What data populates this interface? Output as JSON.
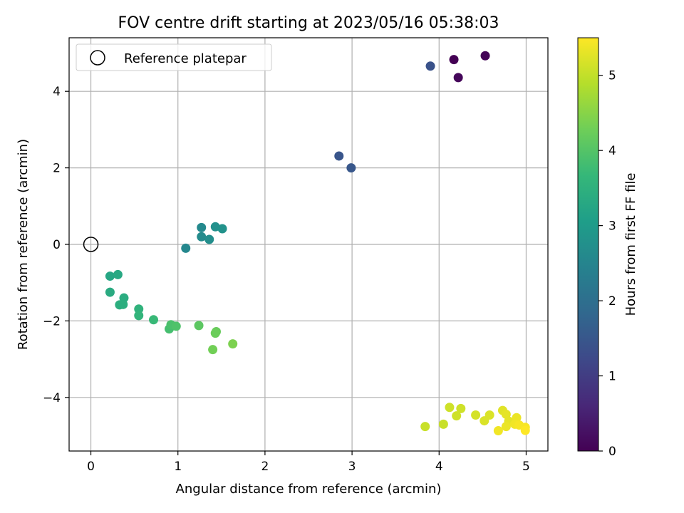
{
  "chart_data": {
    "type": "scatter",
    "title": "FOV centre drift starting at 2023/05/16 05:38:03",
    "xlabel": "Angular distance from reference (arcmin)",
    "ylabel": "Rotation from reference (arcmin)",
    "xlim": [
      -0.25,
      5.25
    ],
    "ylim": [
      -5.4,
      5.4
    ],
    "xticks": [
      0,
      1,
      2,
      3,
      4,
      5
    ],
    "xtick_labels": [
      "0",
      "1",
      "2",
      "3",
      "4",
      "5"
    ],
    "yticks": [
      -4,
      -2,
      0,
      2,
      4
    ],
    "ytick_labels": [
      "−4",
      "−2",
      "0",
      "2",
      "4"
    ],
    "grid": true,
    "legend": {
      "label": "Reference platepar",
      "placement": "top-left"
    },
    "reference_point": {
      "x": 0,
      "y": 0
    },
    "colorbar": {
      "label": "Hours from first FF file",
      "colormap": "viridis",
      "range": [
        0,
        5.5
      ],
      "ticks": [
        0,
        1,
        2,
        3,
        4,
        5
      ],
      "tick_labels": [
        "0",
        "1",
        "2",
        "3",
        "4",
        "5"
      ]
    },
    "colormap_stops": [
      "#440154",
      "#482878",
      "#3e4989",
      "#31688e",
      "#26828e",
      "#1f9e89",
      "#35b779",
      "#6ece58",
      "#b5de2b",
      "#fde725"
    ],
    "points": [
      {
        "x": 4.17,
        "y": 4.83,
        "t": 0.0
      },
      {
        "x": 4.53,
        "y": 4.93,
        "t": 0.05
      },
      {
        "x": 4.22,
        "y": 4.36,
        "t": 0.1
      },
      {
        "x": 3.9,
        "y": 4.66,
        "t": 1.4
      },
      {
        "x": 2.85,
        "y": 2.31,
        "t": 1.45
      },
      {
        "x": 2.99,
        "y": 2.0,
        "t": 1.5
      },
      {
        "x": 1.09,
        "y": -0.1,
        "t": 2.55
      },
      {
        "x": 1.27,
        "y": 0.44,
        "t": 2.6
      },
      {
        "x": 1.27,
        "y": 0.2,
        "t": 2.65
      },
      {
        "x": 1.36,
        "y": 0.13,
        "t": 2.7
      },
      {
        "x": 1.43,
        "y": 0.46,
        "t": 2.75
      },
      {
        "x": 1.51,
        "y": 0.41,
        "t": 2.8
      },
      {
        "x": 0.22,
        "y": -0.83,
        "t": 3.25
      },
      {
        "x": 0.31,
        "y": -0.79,
        "t": 3.3
      },
      {
        "x": 0.22,
        "y": -1.25,
        "t": 3.35
      },
      {
        "x": 0.38,
        "y": -1.4,
        "t": 3.4
      },
      {
        "x": 0.33,
        "y": -1.58,
        "t": 3.45
      },
      {
        "x": 0.37,
        "y": -1.57,
        "t": 3.45
      },
      {
        "x": 0.55,
        "y": -1.69,
        "t": 3.55
      },
      {
        "x": 0.55,
        "y": -1.86,
        "t": 3.6
      },
      {
        "x": 0.72,
        "y": -1.97,
        "t": 3.7
      },
      {
        "x": 0.9,
        "y": -2.21,
        "t": 3.85
      },
      {
        "x": 0.92,
        "y": -2.1,
        "t": 3.9
      },
      {
        "x": 0.98,
        "y": -2.14,
        "t": 3.95
      },
      {
        "x": 1.24,
        "y": -2.12,
        "t": 4.1
      },
      {
        "x": 1.44,
        "y": -2.28,
        "t": 4.2
      },
      {
        "x": 1.43,
        "y": -2.32,
        "t": 4.25
      },
      {
        "x": 1.4,
        "y": -2.75,
        "t": 4.3
      },
      {
        "x": 1.63,
        "y": -2.6,
        "t": 4.4
      },
      {
        "x": 3.84,
        "y": -4.76,
        "t": 5.05
      },
      {
        "x": 4.05,
        "y": -4.7,
        "t": 5.05
      },
      {
        "x": 4.12,
        "y": -4.26,
        "t": 5.1
      },
      {
        "x": 4.25,
        "y": -4.29,
        "t": 5.1
      },
      {
        "x": 4.2,
        "y": -4.48,
        "t": 5.1
      },
      {
        "x": 4.42,
        "y": -4.46,
        "t": 5.15
      },
      {
        "x": 4.58,
        "y": -4.46,
        "t": 5.2
      },
      {
        "x": 4.52,
        "y": -4.61,
        "t": 5.2
      },
      {
        "x": 4.73,
        "y": -4.34,
        "t": 5.25
      },
      {
        "x": 4.77,
        "y": -4.44,
        "t": 5.3
      },
      {
        "x": 4.8,
        "y": -4.62,
        "t": 5.3
      },
      {
        "x": 4.89,
        "y": -4.53,
        "t": 5.35
      },
      {
        "x": 4.77,
        "y": -4.76,
        "t": 5.35
      },
      {
        "x": 4.68,
        "y": -4.87,
        "t": 5.4
      },
      {
        "x": 4.87,
        "y": -4.7,
        "t": 5.4
      },
      {
        "x": 4.92,
        "y": -4.72,
        "t": 5.45
      },
      {
        "x": 4.99,
        "y": -4.78,
        "t": 5.45
      },
      {
        "x": 4.99,
        "y": -4.86,
        "t": 5.5
      }
    ]
  }
}
